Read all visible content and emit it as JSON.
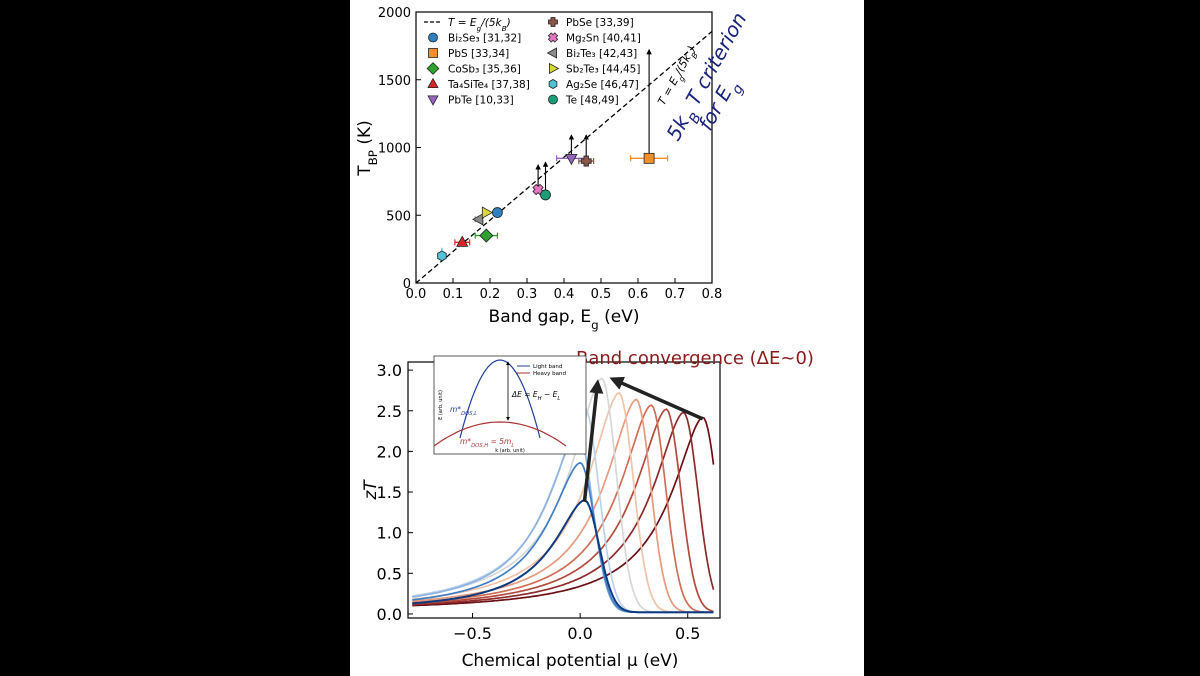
{
  "chart_data": [
    {
      "type": "scatter",
      "xlabel": "Band gap, E_g (eV)",
      "ylabel": "T_BP (K)",
      "xlim": [
        0.0,
        0.8
      ],
      "ylim": [
        0,
        2000
      ],
      "xticks": [
        "0.0",
        "0.1",
        "0.2",
        "0.3",
        "0.4",
        "0.5",
        "0.6",
        "0.7",
        "0.8"
      ],
      "yticks": [
        "0",
        "500",
        "1000",
        "1500",
        "2000"
      ],
      "line": {
        "label": "T = E_g/(5k_B)",
        "slope_K_per_eV": 2321
      },
      "annotation": {
        "line_label": "T = E_g/(5k_B)",
        "criterion_line1": "5k_B T criterion",
        "criterion_line2": "for E_g"
      },
      "legend_position": "top-left",
      "series": [
        {
          "name": "Bi₂Se₃ [31,32]",
          "marker": "circle",
          "color": "#2f7fc1",
          "x": 0.22,
          "y": 520,
          "x_err": 0.0,
          "arrow_to": null
        },
        {
          "name": "PbS [33,34]",
          "marker": "square",
          "color": "#f4902c",
          "x": 0.63,
          "y": 920,
          "x_err": 0.05,
          "arrow_to": 1720
        },
        {
          "name": "CoSb₃ [35,36]",
          "marker": "diamond",
          "color": "#2ea02c",
          "x": 0.19,
          "y": 350,
          "x_err": 0.03,
          "arrow_to": null
        },
        {
          "name": "Ta₄SiTe₄ [37,38]",
          "marker": "triangle-up",
          "color": "#d62728",
          "x": 0.125,
          "y": 300,
          "x_err": 0.02,
          "arrow_to": null
        },
        {
          "name": "PbTe [10,33]",
          "marker": "triangle-down",
          "color": "#9467bd",
          "x": 0.42,
          "y": 920,
          "x_err": 0.04,
          "arrow_to": 1090
        },
        {
          "name": "PbSe [33,39]",
          "marker": "plus",
          "color": "#8c564b",
          "x": 0.46,
          "y": 900,
          "x_err": 0.02,
          "arrow_to": 1090
        },
        {
          "name": "Mg₂Sn [40,41]",
          "marker": "x",
          "color": "#e377c2",
          "x": 0.33,
          "y": 690,
          "x_err": 0.01,
          "arrow_to": 870
        },
        {
          "name": "Bi₂Te₃ [42,43]",
          "marker": "triangle-left",
          "color": "#8c8c8c",
          "x": 0.17,
          "y": 470,
          "x_err": 0.01,
          "arrow_to": null
        },
        {
          "name": "Sb₂Te₃ [44,45]",
          "marker": "triangle-right",
          "color": "#d8d83a",
          "x": 0.19,
          "y": 520,
          "x_err": 0.0,
          "arrow_to": null
        },
        {
          "name": "Ag₂Se [46,47]",
          "marker": "hexagon",
          "color": "#4fc3d7",
          "x": 0.07,
          "y": 200,
          "x_err": 0.0,
          "arrow_to": null
        },
        {
          "name": "Te [48,49]",
          "marker": "circle",
          "color": "#1b9e77",
          "x": 0.35,
          "y": 650,
          "x_err": 0.0,
          "arrow_to": 890
        }
      ]
    },
    {
      "type": "line",
      "title": "Band convergence (ΔE~0)",
      "xlabel": "Chemical potential μ (eV)",
      "ylabel": "zT",
      "xlim": [
        -0.8,
        0.65
      ],
      "ylim": [
        -0.05,
        3.1
      ],
      "xticks": [
        "−0.5",
        "0.0",
        "0.5"
      ],
      "yticks": [
        "0.0",
        "0.5",
        "1.0",
        "1.5",
        "2.0",
        "2.5",
        "3.0"
      ],
      "series": [
        {
          "peak_mu": 0.02,
          "peak_zT": 1.38,
          "color": "#0d3b82",
          "dashed_left": true
        },
        {
          "peak_mu": 0.0,
          "peak_zT": 1.84,
          "color": "#3f7fc6"
        },
        {
          "peak_mu": -0.01,
          "peak_zT": 2.22,
          "color": "#8db3e0"
        },
        {
          "peak_mu": 0.02,
          "peak_zT": 2.52,
          "color": "#bcd3ee"
        },
        {
          "peak_mu": 0.1,
          "peak_zT": 2.88,
          "color": "#d7d7d7"
        },
        {
          "peak_mu": 0.18,
          "peak_zT": 2.7,
          "color": "#f2c2a8"
        },
        {
          "peak_mu": 0.26,
          "peak_zT": 2.62,
          "color": "#e79a7c"
        },
        {
          "peak_mu": 0.33,
          "peak_zT": 2.55,
          "color": "#cf6e55"
        },
        {
          "peak_mu": 0.4,
          "peak_zT": 2.5,
          "color": "#b34a3c"
        },
        {
          "peak_mu": 0.48,
          "peak_zT": 2.46,
          "color": "#8e2a2a"
        },
        {
          "peak_mu": 0.57,
          "peak_zT": 2.4,
          "color": "#6b0f15"
        }
      ],
      "inset": {
        "legend": [
          "Light band",
          "Heavy band"
        ],
        "equation": "ΔE = E_H − E_L",
        "light_label": "m*_DOS,L",
        "heavy_label": "m*_DOS,H = 5m_L",
        "xaxis": "k (arb. unit)",
        "yaxis": "E (arb. unit)"
      }
    }
  ]
}
